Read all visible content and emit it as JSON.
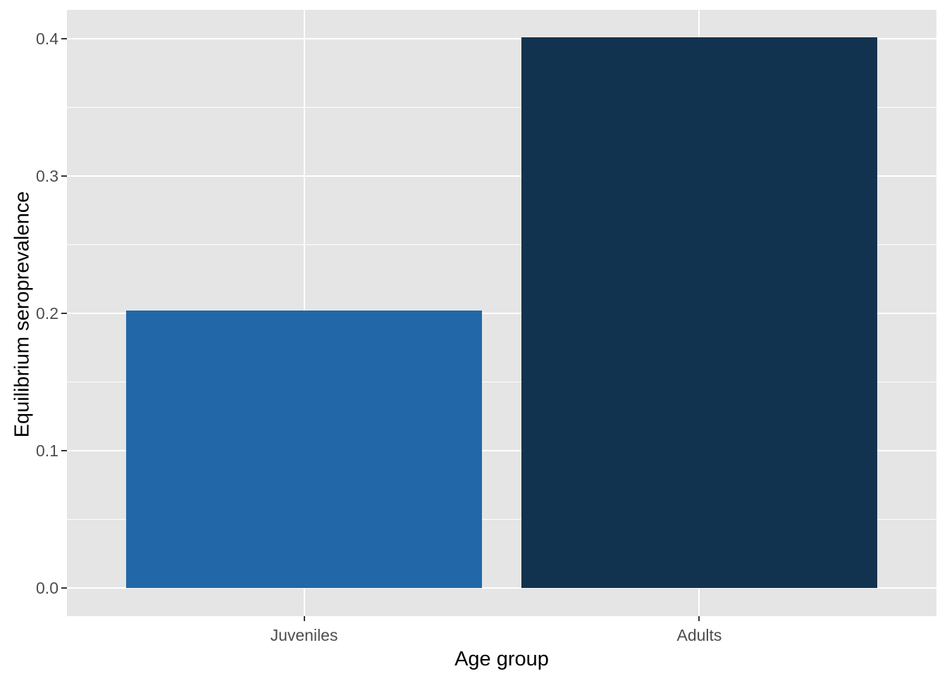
{
  "figure": {
    "background_color": "#FFFFFF",
    "panel_background_color": "#E5E5E5",
    "gridline_color": "#FFFFFF",
    "tick_mark_color": "#333333",
    "tick_label_color": "#4D4D4D",
    "axis_title_color": "#000000"
  },
  "chart_data": {
    "type": "bar",
    "title": "",
    "xlabel": "Age group",
    "ylabel": "Equilibrium seroprevalence",
    "categories": [
      "Juveniles",
      "Adults"
    ],
    "values": [
      0.202,
      0.401
    ],
    "bar_colors": [
      "#2268A8",
      "#12334F"
    ],
    "y_ticks": [
      0.0,
      0.1,
      0.2,
      0.3,
      0.4
    ],
    "y_tick_labels": [
      "0.0",
      "0.1",
      "0.2",
      "0.3",
      "0.4"
    ],
    "y_minor_ticks": [
      0.05,
      0.15,
      0.25,
      0.35
    ],
    "ylim": [
      -0.0205,
      0.421
    ],
    "grid": true,
    "legend": false,
    "style": "ggplot2-theme-gray"
  }
}
